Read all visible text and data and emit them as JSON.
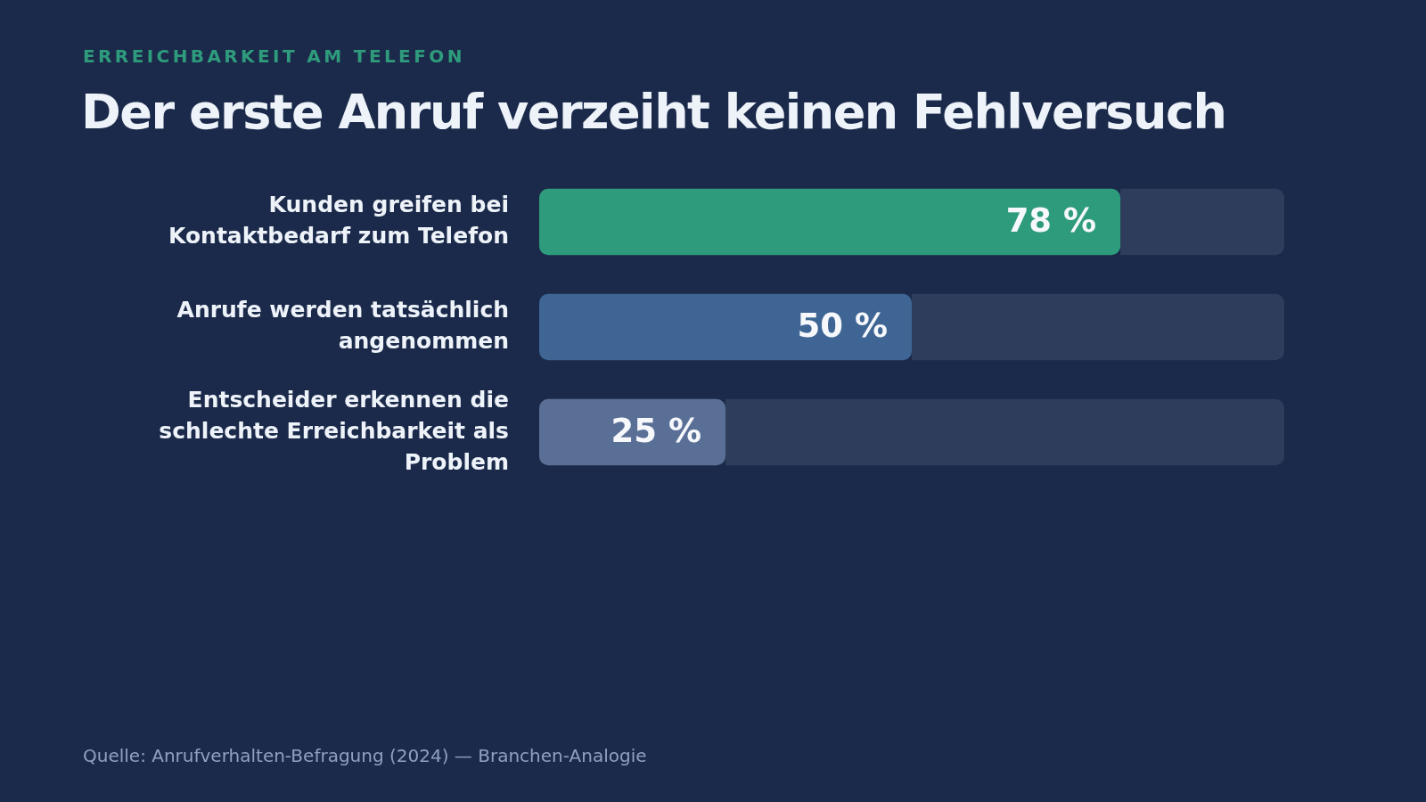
{
  "chart_data": {
    "type": "bar",
    "orientation": "horizontal",
    "stacked": true,
    "subtitle": "ERREICHBARKEIT AM TELEFON",
    "title": "Der erste Anruf verzeiht keinen Fehlversuch",
    "categories": [
      "Kunden greifen bei Kontaktbedarf zum Telefon",
      "Anrufe werden tatsächlich angenommen",
      "Entscheider erkennen die schlechte Erreichbarkeit als Problem"
    ],
    "series": [
      {
        "colors": [
          "#2e9c7c",
          "#3e6593",
          "#5a6f96"
        ],
        "values": [
          78,
          50,
          25
        ],
        "value_labels": [
          "78 %",
          "50 %",
          "25 %"
        ]
      },
      {
        "color": "#2f3d5c",
        "values": [
          22,
          50,
          75
        ]
      }
    ],
    "xlim": [
      0,
      100
    ],
    "tick_labels": "y",
    "annotations": [
      "Quelle: Anrufverhalten-Befragung (2024) — Branchen-Analogie"
    ]
  }
}
